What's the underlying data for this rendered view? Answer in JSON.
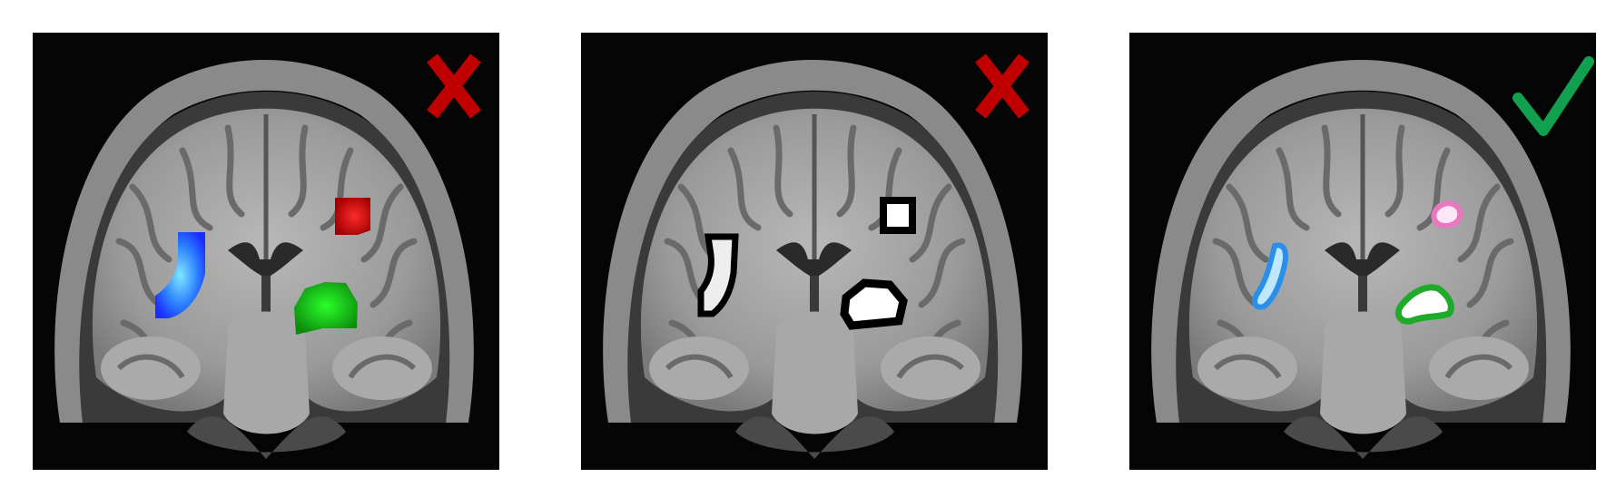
{
  "panels": [
    {
      "id": "panel-1",
      "overlay_style": "solid-color-fill",
      "regions": [
        {
          "name": "left-insula-region",
          "color": "#1d4cff"
        },
        {
          "name": "right-caudate-region",
          "color": "#b80000"
        },
        {
          "name": "right-lower-region",
          "color": "#17c317"
        }
      ],
      "verdict": {
        "symbol": "cross",
        "color": "#c00000"
      }
    },
    {
      "id": "panel-2",
      "overlay_style": "black-outline-white-center",
      "regions": [
        {
          "name": "left-insula-region",
          "color": "#000000"
        },
        {
          "name": "right-caudate-region",
          "color": "#000000"
        },
        {
          "name": "right-lower-region",
          "color": "#000000"
        }
      ],
      "verdict": {
        "symbol": "cross",
        "color": "#c00000"
      }
    },
    {
      "id": "panel-3",
      "overlay_style": "colored-outline-white-center",
      "regions": [
        {
          "name": "left-insula-region",
          "color": "#2a8fe8"
        },
        {
          "name": "right-caudate-region",
          "color": "#e878c0"
        },
        {
          "name": "right-lower-region",
          "color": "#1faa2a"
        }
      ],
      "verdict": {
        "symbol": "check",
        "color": "#10a050"
      }
    }
  ]
}
